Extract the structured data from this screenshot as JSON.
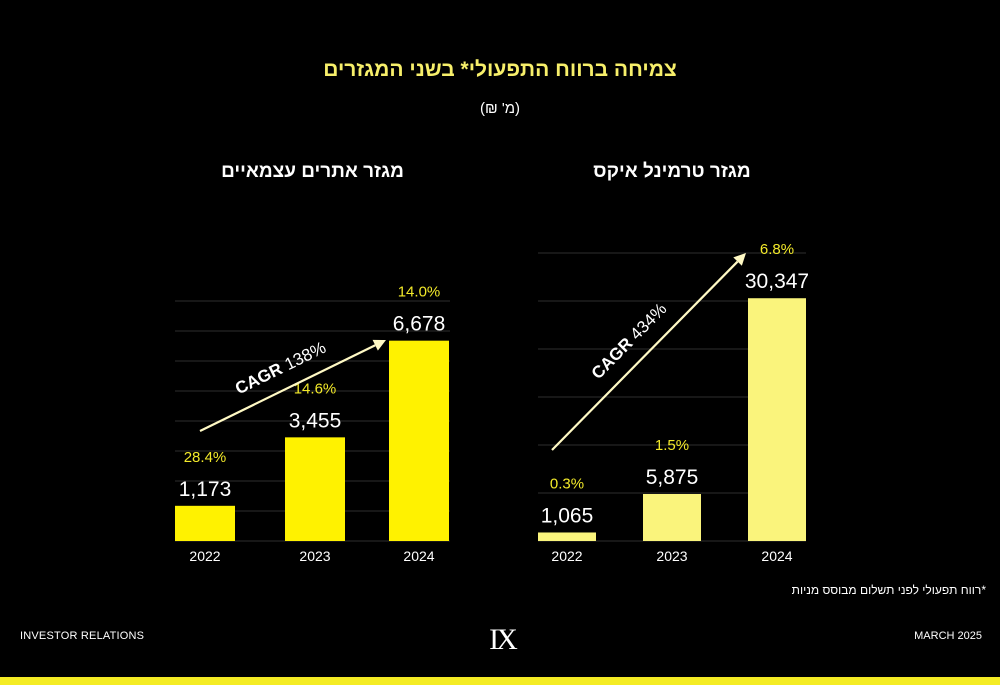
{
  "header": {
    "title": "צמיחה ברווח התפעולי* בשני המגזרים",
    "subtitle": "(מ' ₪)"
  },
  "footer": {
    "left_text": "INVESTOR RELATIONS",
    "right_text": "MARCH 2025",
    "footnote": "*רווח תפעולי לפני תשלום מבוסס מניות",
    "logo_text": "IX"
  },
  "colors": {
    "left_bars": "#fff200",
    "right_bars": "#faf47c",
    "margin_labels": "#f3ea2a",
    "arrow": "#fff9c4",
    "grid": "#2e2e2e",
    "bottom_bar": "#f4ec25"
  },
  "chart_data": [
    {
      "type": "bar",
      "title": "מגזר אתרים עצמאיים",
      "categories": [
        "2022",
        "2023",
        "2024"
      ],
      "values": [
        1173,
        3455,
        6678
      ],
      "value_labels": [
        "1,173",
        "3,455",
        "6,678"
      ],
      "margin_labels": [
        "28.4%",
        "14.6%",
        "14.0%"
      ],
      "cagr_label": "CAGR",
      "cagr_value": "138%",
      "ylim": [
        0,
        8000
      ],
      "grid": true
    },
    {
      "type": "bar",
      "title": "מגזר טרמינל איקס",
      "categories": [
        "2022",
        "2023",
        "2024"
      ],
      "values": [
        1065,
        5875,
        30347
      ],
      "value_labels": [
        "1,065",
        "5,875",
        "30,347"
      ],
      "margin_labels": [
        "0.3%",
        "1.5%",
        "6.8%"
      ],
      "cagr_label": "CAGR",
      "cagr_value": "434%",
      "ylim": [
        0,
        36000
      ],
      "grid": true
    }
  ]
}
